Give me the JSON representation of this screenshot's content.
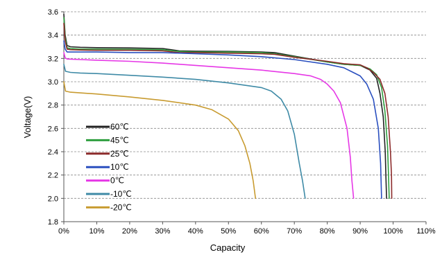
{
  "chart_data": {
    "type": "line",
    "xlabel": "Capacity",
    "ylabel": "Voltage(V)",
    "xlim": [
      0,
      110
    ],
    "ylim": [
      1.8,
      3.6
    ],
    "x_unit_suffix": "%",
    "x_ticks": [
      0,
      10,
      20,
      30,
      40,
      50,
      60,
      70,
      80,
      90,
      100,
      110
    ],
    "y_ticks": [
      1.8,
      2.0,
      2.2,
      2.4,
      2.6,
      2.8,
      3.0,
      3.2,
      3.4,
      3.6
    ],
    "grid": "horizontal dashed",
    "legend_position": "bottom-left",
    "series": [
      {
        "name": "60℃",
        "color": "#222222",
        "points": [
          [
            0,
            3.58
          ],
          [
            0.4,
            3.4
          ],
          [
            1,
            3.31
          ],
          [
            2,
            3.3
          ],
          [
            5,
            3.295
          ],
          [
            10,
            3.292
          ],
          [
            20,
            3.29
          ],
          [
            30,
            3.285
          ],
          [
            35,
            3.265
          ],
          [
            40,
            3.262
          ],
          [
            50,
            3.26
          ],
          [
            60,
            3.255
          ],
          [
            64,
            3.25
          ],
          [
            70,
            3.22
          ],
          [
            80,
            3.17
          ],
          [
            85,
            3.15
          ],
          [
            90,
            3.14
          ],
          [
            93,
            3.1
          ],
          [
            95,
            3.03
          ],
          [
            96,
            2.9
          ],
          [
            97,
            2.7
          ],
          [
            97.6,
            2.4
          ],
          [
            97.8,
            2.2
          ],
          [
            98,
            2.0
          ]
        ]
      },
      {
        "name": "45℃",
        "color": "#2e9e3e",
        "points": [
          [
            0,
            3.55
          ],
          [
            0.4,
            3.38
          ],
          [
            1,
            3.29
          ],
          [
            2,
            3.285
          ],
          [
            5,
            3.28
          ],
          [
            10,
            3.28
          ],
          [
            20,
            3.278
          ],
          [
            30,
            3.275
          ],
          [
            35,
            3.26
          ],
          [
            40,
            3.255
          ],
          [
            50,
            3.255
          ],
          [
            60,
            3.25
          ],
          [
            64,
            3.24
          ],
          [
            70,
            3.215
          ],
          [
            80,
            3.17
          ],
          [
            85,
            3.15
          ],
          [
            90,
            3.14
          ],
          [
            93,
            3.11
          ],
          [
            95,
            3.06
          ],
          [
            96.5,
            2.95
          ],
          [
            97.5,
            2.75
          ],
          [
            98.3,
            2.45
          ],
          [
            98.6,
            2.2
          ],
          [
            98.8,
            2.0
          ]
        ]
      },
      {
        "name": "25℃",
        "color": "#8b2a2a",
        "points": [
          [
            0,
            3.5
          ],
          [
            0.4,
            3.35
          ],
          [
            1,
            3.28
          ],
          [
            2,
            3.275
          ],
          [
            5,
            3.272
          ],
          [
            10,
            3.27
          ],
          [
            20,
            3.27
          ],
          [
            30,
            3.265
          ],
          [
            35,
            3.25
          ],
          [
            40,
            3.25
          ],
          [
            50,
            3.245
          ],
          [
            60,
            3.24
          ],
          [
            64,
            3.235
          ],
          [
            70,
            3.21
          ],
          [
            80,
            3.175
          ],
          [
            85,
            3.155
          ],
          [
            90,
            3.145
          ],
          [
            92,
            3.12
          ],
          [
            94,
            3.08
          ],
          [
            96,
            3.02
          ],
          [
            97.5,
            2.9
          ],
          [
            98.5,
            2.7
          ],
          [
            99.2,
            2.4
          ],
          [
            99.5,
            2.2
          ],
          [
            99.6,
            2.0
          ]
        ]
      },
      {
        "name": "10℃",
        "color": "#2a4fbf",
        "points": [
          [
            0,
            3.35
          ],
          [
            0.4,
            3.28
          ],
          [
            1,
            3.255
          ],
          [
            5,
            3.255
          ],
          [
            10,
            3.255
          ],
          [
            20,
            3.25
          ],
          [
            30,
            3.25
          ],
          [
            40,
            3.24
          ],
          [
            50,
            3.23
          ],
          [
            60,
            3.215
          ],
          [
            70,
            3.19
          ],
          [
            80,
            3.15
          ],
          [
            85,
            3.12
          ],
          [
            90,
            3.05
          ],
          [
            92,
            2.98
          ],
          [
            94,
            2.85
          ],
          [
            95.5,
            2.6
          ],
          [
            96.2,
            2.3
          ],
          [
            96.5,
            2.0
          ]
        ]
      },
      {
        "name": "0℃",
        "color": "#e637e6",
        "points": [
          [
            0,
            3.25
          ],
          [
            0.4,
            3.205
          ],
          [
            1,
            3.195
          ],
          [
            5,
            3.19
          ],
          [
            10,
            3.185
          ],
          [
            20,
            3.175
          ],
          [
            30,
            3.16
          ],
          [
            40,
            3.14
          ],
          [
            50,
            3.12
          ],
          [
            60,
            3.1
          ],
          [
            70,
            3.07
          ],
          [
            75,
            3.05
          ],
          [
            78,
            3.02
          ],
          [
            80,
            2.98
          ],
          [
            82,
            2.92
          ],
          [
            84,
            2.82
          ],
          [
            86,
            2.6
          ],
          [
            87,
            2.35
          ],
          [
            87.5,
            2.15
          ],
          [
            88,
            2.0
          ]
        ]
      },
      {
        "name": "-10℃",
        "color": "#3e8aa6",
        "points": [
          [
            0,
            3.15
          ],
          [
            0.5,
            3.09
          ],
          [
            2,
            3.08
          ],
          [
            5,
            3.075
          ],
          [
            10,
            3.07
          ],
          [
            20,
            3.055
          ],
          [
            30,
            3.04
          ],
          [
            40,
            3.02
          ],
          [
            50,
            2.99
          ],
          [
            60,
            2.95
          ],
          [
            63,
            2.92
          ],
          [
            66,
            2.85
          ],
          [
            68,
            2.75
          ],
          [
            70,
            2.55
          ],
          [
            71.5,
            2.3
          ],
          [
            72.5,
            2.15
          ],
          [
            73.3,
            2.0
          ]
        ]
      },
      {
        "name": "-20℃",
        "color": "#c89b30",
        "points": [
          [
            0,
            3.0
          ],
          [
            0.5,
            2.92
          ],
          [
            2,
            2.91
          ],
          [
            10,
            2.895
          ],
          [
            20,
            2.87
          ],
          [
            30,
            2.84
          ],
          [
            40,
            2.8
          ],
          [
            45,
            2.76
          ],
          [
            50,
            2.68
          ],
          [
            53,
            2.58
          ],
          [
            55,
            2.45
          ],
          [
            56.5,
            2.3
          ],
          [
            57.5,
            2.15
          ],
          [
            58.2,
            2.0
          ]
        ]
      }
    ]
  }
}
